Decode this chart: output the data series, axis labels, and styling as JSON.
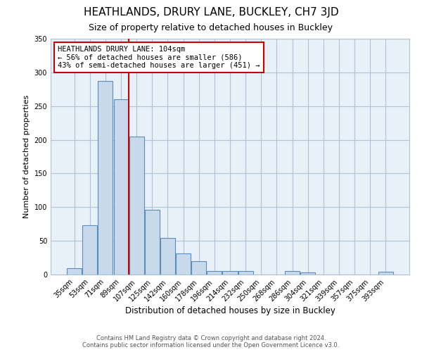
{
  "title": "HEATHLANDS, DRURY LANE, BUCKLEY, CH7 3JD",
  "subtitle": "Size of property relative to detached houses in Buckley",
  "xlabel": "Distribution of detached houses by size in Buckley",
  "ylabel": "Number of detached properties",
  "bar_labels": [
    "35sqm",
    "53sqm",
    "71sqm",
    "89sqm",
    "107sqm",
    "125sqm",
    "142sqm",
    "160sqm",
    "178sqm",
    "196sqm",
    "214sqm",
    "232sqm",
    "250sqm",
    "268sqm",
    "286sqm",
    "304sqm",
    "321sqm",
    "339sqm",
    "357sqm",
    "375sqm",
    "393sqm"
  ],
  "bar_values": [
    9,
    73,
    287,
    260,
    205,
    96,
    54,
    31,
    20,
    5,
    5,
    5,
    0,
    0,
    5,
    3,
    0,
    0,
    0,
    0,
    4
  ],
  "bar_color": "#c9d9ec",
  "bar_edge_color": "#5b8db8",
  "plot_bg_color": "#e8f0f8",
  "ylim": [
    0,
    350
  ],
  "yticks": [
    0,
    50,
    100,
    150,
    200,
    250,
    300,
    350
  ],
  "marker_bin": "107sqm",
  "marker_label_line1": "HEATHLANDS DRURY LANE: 104sqm",
  "marker_label_line2": "← 56% of detached houses are smaller (586)",
  "marker_label_line3": "43% of semi-detached houses are larger (451) →",
  "marker_color": "#cc0000",
  "annotation_box_color": "#ffffff",
  "annotation_box_edge": "#cc0000",
  "footer_line1": "Contains HM Land Registry data © Crown copyright and database right 2024.",
  "footer_line2": "Contains public sector information licensed under the Open Government Licence v3.0.",
  "background_color": "#ffffff",
  "grid_color": "#aec4d8",
  "title_fontsize": 11,
  "subtitle_fontsize": 9,
  "ylabel_fontsize": 8,
  "xlabel_fontsize": 8.5,
  "tick_fontsize": 7,
  "footer_fontsize": 6,
  "annot_fontsize": 7.5
}
